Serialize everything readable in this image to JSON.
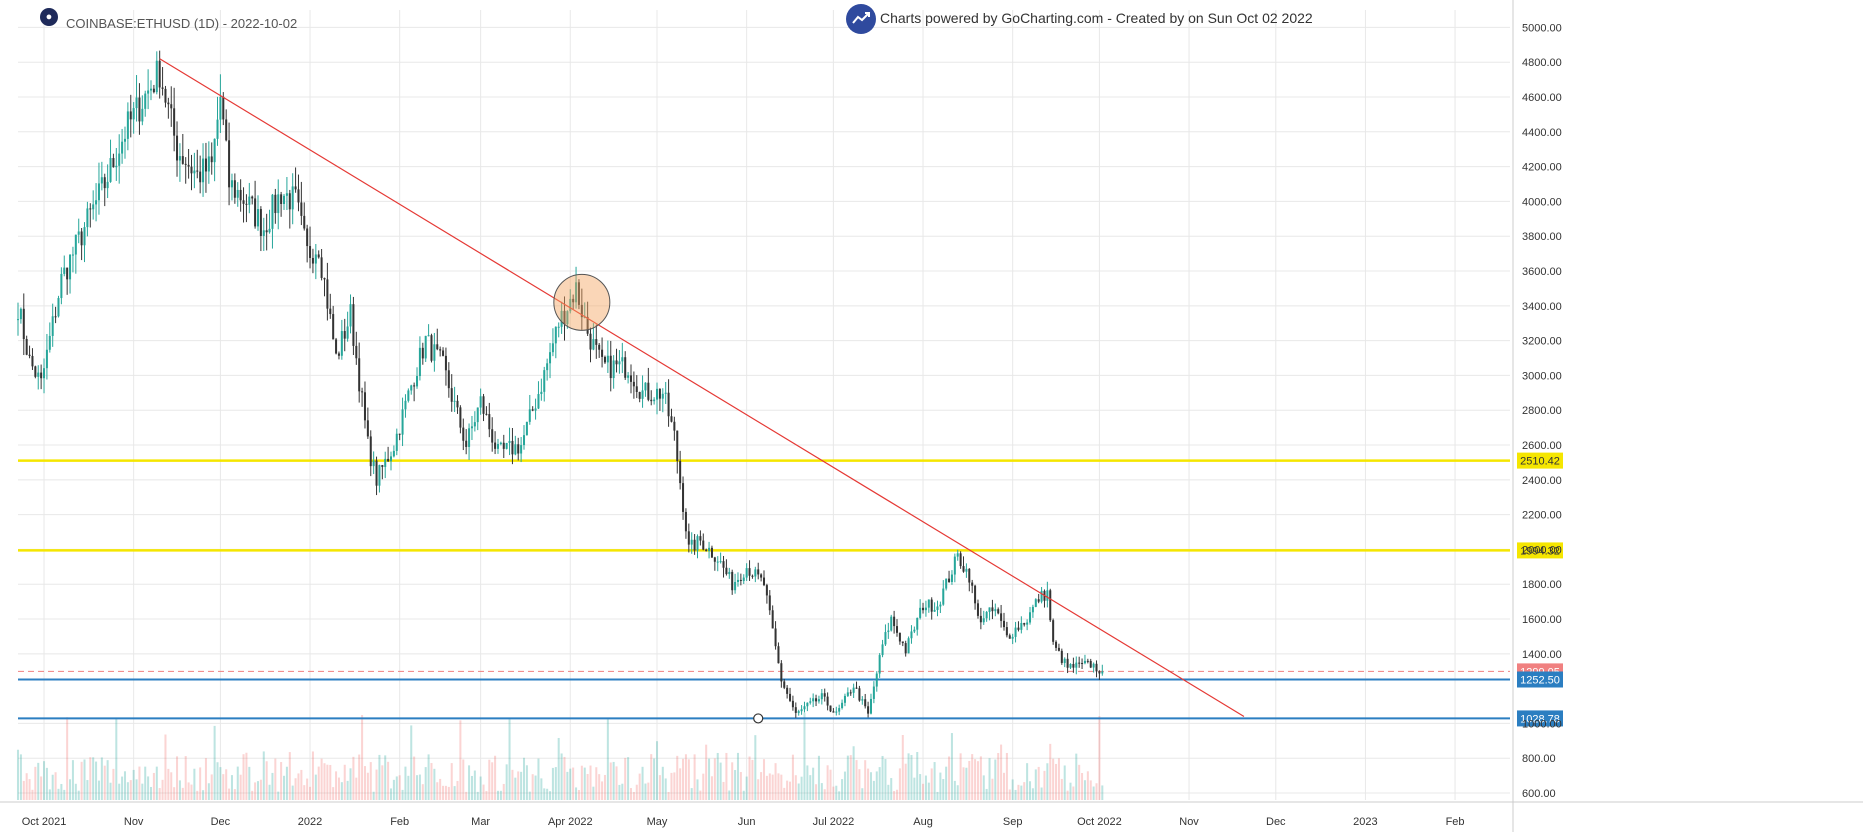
{
  "header": {
    "symbol_text": "COINBASE:ETHUSD (1D) - 2022-10-02",
    "credit_text": "Charts powered by GoCharting.com - Created by  on Sun Oct 02 2022"
  },
  "colors": {
    "up": "#26a69a",
    "down": "#333333",
    "trendline": "#e53935",
    "support_yellow": "#f5e600",
    "support_blue": "#2b7ec1",
    "current_price": "#f08080",
    "grid": "#e8e8e8"
  },
  "chart_data": {
    "type": "candlestick",
    "title": "COINBASE:ETHUSD (1D) - 2022-10-02",
    "ylim": [
      560,
      5100
    ],
    "y_ticks": [
      "5000.00",
      "4800.00",
      "4600.00",
      "4400.00",
      "4200.00",
      "4000.00",
      "3800.00",
      "3600.00",
      "3400.00",
      "3200.00",
      "3000.00",
      "2800.00",
      "2600.00",
      "2400.00",
      "2200.00",
      "2000.00",
      "1800.00",
      "1600.00",
      "1400.00",
      "1000.00",
      "800.00",
      "600.00"
    ],
    "x_ticks": [
      "Oct 2021",
      "Nov",
      "Dec",
      "2022",
      "Feb",
      "Mar",
      "Apr 2022",
      "May",
      "Jun",
      "Jul 2022",
      "Aug",
      "Sep",
      "Oct 2022",
      "Nov",
      "Dec",
      "2023",
      "Feb"
    ],
    "x_tick_dates": [
      "2021-10-01",
      "2021-11-01",
      "2021-12-01",
      "2022-01-01",
      "2022-02-01",
      "2022-03-01",
      "2022-04-01",
      "2022-05-01",
      "2022-06-01",
      "2022-07-01",
      "2022-08-01",
      "2022-09-01",
      "2022-10-01",
      "2022-11-01",
      "2022-12-01",
      "2023-01-01",
      "2023-02-01"
    ],
    "date_range": [
      "2021-09-22",
      "2023-02-20"
    ],
    "price_anchors": [
      [
        "2021-09-22",
        3400
      ],
      [
        "2021-09-26",
        3080
      ],
      [
        "2021-09-30",
        2950
      ],
      [
        "2021-10-07",
        3550
      ],
      [
        "2021-10-15",
        3850
      ],
      [
        "2021-10-22",
        4100
      ],
      [
        "2021-10-29",
        4400
      ],
      [
        "2021-11-03",
        4550
      ],
      [
        "2021-11-10",
        4750
      ],
      [
        "2021-11-16",
        4300
      ],
      [
        "2021-11-23",
        4150
      ],
      [
        "2021-11-28",
        4200
      ],
      [
        "2021-12-01",
        4600
      ],
      [
        "2021-12-04",
        4100
      ],
      [
        "2021-12-10",
        4000
      ],
      [
        "2021-12-16",
        3850
      ],
      [
        "2021-12-22",
        4050
      ],
      [
        "2021-12-27",
        4000
      ],
      [
        "2021-12-31",
        3700
      ],
      [
        "2022-01-04",
        3750
      ],
      [
        "2022-01-10",
        3100
      ],
      [
        "2022-01-15",
        3350
      ],
      [
        "2022-01-21",
        2600
      ],
      [
        "2022-01-24",
        2400
      ],
      [
        "2022-01-30",
        2600
      ],
      [
        "2022-02-06",
        3000
      ],
      [
        "2022-02-10",
        3200
      ],
      [
        "2022-02-16",
        3050
      ],
      [
        "2022-02-24",
        2600
      ],
      [
        "2022-03-01",
        2850
      ],
      [
        "2022-03-07",
        2550
      ],
      [
        "2022-03-15",
        2600
      ],
      [
        "2022-03-22",
        2950
      ],
      [
        "2022-03-28",
        3300
      ],
      [
        "2022-04-03",
        3500
      ],
      [
        "2022-04-07",
        3250
      ],
      [
        "2022-04-12",
        3050
      ],
      [
        "2022-04-21",
        3050
      ],
      [
        "2022-04-26",
        2900
      ],
      [
        "2022-05-03",
        2900
      ],
      [
        "2022-05-07",
        2650
      ],
      [
        "2022-05-12",
        2000
      ],
      [
        "2022-05-16",
        2050
      ],
      [
        "2022-05-22",
        1950
      ],
      [
        "2022-05-27",
        1800
      ],
      [
        "2022-06-01",
        1900
      ],
      [
        "2022-06-07",
        1800
      ],
      [
        "2022-06-13",
        1250
      ],
      [
        "2022-06-18",
        1050
      ],
      [
        "2022-06-22",
        1100
      ],
      [
        "2022-06-27",
        1150
      ],
      [
        "2022-07-02",
        1050
      ],
      [
        "2022-07-08",
        1220
      ],
      [
        "2022-07-13",
        1050
      ],
      [
        "2022-07-18",
        1450
      ],
      [
        "2022-07-21",
        1600
      ],
      [
        "2022-07-26",
        1420
      ],
      [
        "2022-08-01",
        1680
      ],
      [
        "2022-08-06",
        1680
      ],
      [
        "2022-08-13",
        1960
      ],
      [
        "2022-08-17",
        1850
      ],
      [
        "2022-08-20",
        1600
      ],
      [
        "2022-08-26",
        1650
      ],
      [
        "2022-08-30",
        1500
      ],
      [
        "2022-09-06",
        1600
      ],
      [
        "2022-09-10",
        1720
      ],
      [
        "2022-09-13",
        1750
      ],
      [
        "2022-09-15",
        1450
      ],
      [
        "2022-09-20",
        1320
      ],
      [
        "2022-09-24",
        1330
      ],
      [
        "2022-09-28",
        1340
      ],
      [
        "2022-10-02",
        1299
      ]
    ],
    "annotations": {
      "horizontal_levels": [
        {
          "label": "2510.42",
          "value": 2510.42,
          "color": "yellow"
        },
        {
          "label": "1994.32",
          "value": 1994.32,
          "color": "yellow"
        },
        {
          "label": "1299.05",
          "value": 1299.05,
          "color": "current"
        },
        {
          "label": "1252.50",
          "value": 1252.5,
          "color": "blue"
        },
        {
          "label": "1028.78",
          "value": 1028.78,
          "color": "blue"
        }
      ],
      "trendline": {
        "from": [
          "2021-11-10",
          4820
        ],
        "to": [
          "2022-11-20",
          1040
        ]
      },
      "highlight_circle": {
        "date": "2022-04-05",
        "value": 3420
      },
      "marker_point": {
        "date": "2022-06-05",
        "value": 1028.78
      }
    }
  }
}
